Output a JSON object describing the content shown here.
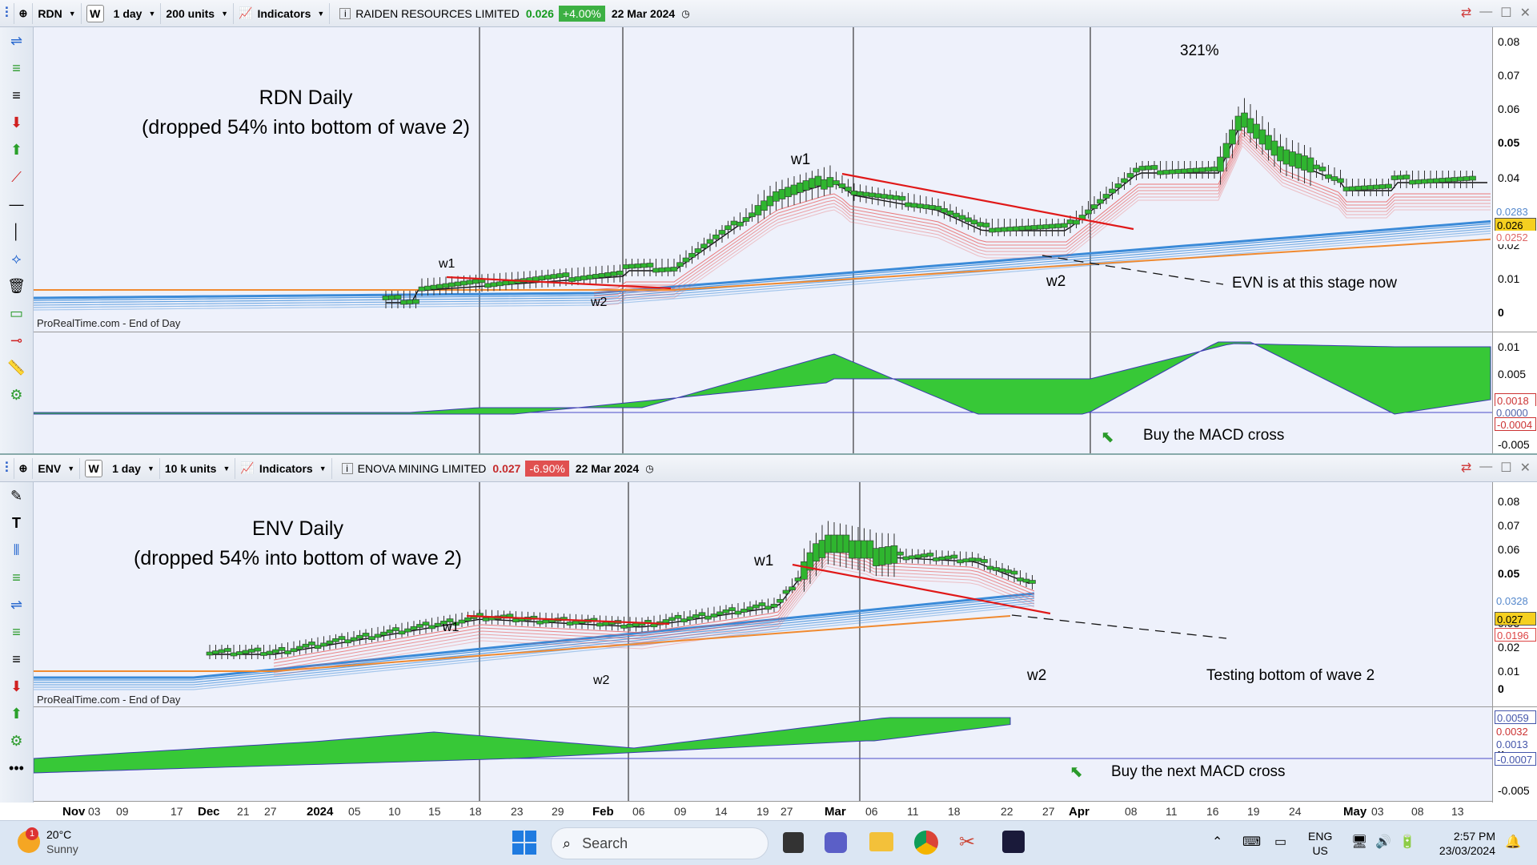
{
  "top": {
    "symbol": "RDN",
    "timeframe": "1 day",
    "units": "200 units",
    "indicators_label": "Indicators",
    "w_label": "W",
    "name": "RAIDEN RESOURCES LIMITED",
    "price": "0.026",
    "change": "+4.00%",
    "date": "22 Mar 2024",
    "title_line1": "RDN Daily",
    "title_line2": "(dropped 54% into bottom of wave 2)",
    "pct_label": "321%",
    "w1_a": "w1",
    "w2_a": "w2",
    "w1_b": "w1",
    "w2_b": "w2",
    "note": "EVN is at this stage now",
    "macd_note": "Buy the MACD cross",
    "source": "ProRealTime.com - End of Day",
    "price_axis": [
      "0.08",
      "0.07",
      "0.06",
      "0.05",
      "0.04",
      "0.03",
      "0.02",
      "0.01",
      "0"
    ],
    "price_tag": "0.026",
    "tag_above": "0.0283",
    "tag_below": "0.0252",
    "macd_axis": [
      "0.01",
      "0.005",
      "0",
      "-0.005"
    ],
    "macd_tag1": "0.0018",
    "macd_tag2": "-0.0004",
    "macd_tag3": "0.0000"
  },
  "bottom": {
    "symbol": "ENV",
    "timeframe": "1 day",
    "units": "10 k units",
    "indicators_label": "Indicators",
    "w_label": "W",
    "name": "ENOVA MINING LIMITED",
    "price": "0.027",
    "change": "-6.90%",
    "date": "22 Mar 2024",
    "title_line1": "ENV Daily",
    "title_line2": "(dropped 54% into bottom of wave 2)",
    "w1_a": "w1",
    "w2_a": "w2",
    "w1_b": "w1",
    "w2_b": "w2",
    "note": "Testing bottom of wave 2",
    "macd_note": "Buy the next MACD cross",
    "source": "ProRealTime.com - End of Day",
    "price_axis": [
      "0.08",
      "0.07",
      "0.06",
      "0.05",
      "0.04",
      "0.03",
      "0.02",
      "0.01",
      "0"
    ],
    "price_tag": "0.027",
    "tag_above": "0.0328",
    "tag_red": "0.0196",
    "macd_axis": [
      "0",
      "-0.005"
    ],
    "macd_tag1": "0.0059",
    "macd_tag2": "0.0032",
    "macd_tag3": "0.0013",
    "macd_tag4": "-0.0007"
  },
  "xaxis": [
    {
      "t": "Nov",
      "big": true
    },
    {
      "t": "03"
    },
    {
      "t": "09"
    },
    {
      "t": "17"
    },
    {
      "t": "Dec",
      "big": true
    },
    {
      "t": "21"
    },
    {
      "t": "27"
    },
    {
      "t": "2024",
      "big": true
    },
    {
      "t": "05"
    },
    {
      "t": "10"
    },
    {
      "t": "15"
    },
    {
      "t": "18"
    },
    {
      "t": "23"
    },
    {
      "t": "29"
    },
    {
      "t": "Feb",
      "big": true
    },
    {
      "t": "06"
    },
    {
      "t": "09"
    },
    {
      "t": "14"
    },
    {
      "t": "19"
    },
    {
      "t": "27"
    },
    {
      "t": "Mar",
      "big": true
    },
    {
      "t": "06"
    },
    {
      "t": "11"
    },
    {
      "t": "18"
    },
    {
      "t": "22"
    },
    {
      "t": "27"
    },
    {
      "t": "Apr",
      "big": true
    },
    {
      "t": "08"
    },
    {
      "t": "11"
    },
    {
      "t": "16"
    },
    {
      "t": "19"
    },
    {
      "t": "24"
    },
    {
      "t": "May",
      "big": true
    },
    {
      "t": "03"
    },
    {
      "t": "08"
    },
    {
      "t": "13"
    }
  ],
  "taskbar": {
    "temp": "20°C",
    "weather": "Sunny",
    "notif": "1",
    "search": "Search",
    "lang1": "ENG",
    "lang2": "US",
    "time": "2:57 PM",
    "date": "23/03/2024"
  },
  "colors": {
    "up": "#2fb52f",
    "down": "#d05050",
    "ema_red": "#e86060",
    "ema_blue": "#3a8ad8",
    "orange": "#f08a30",
    "trend": "#e01818"
  }
}
